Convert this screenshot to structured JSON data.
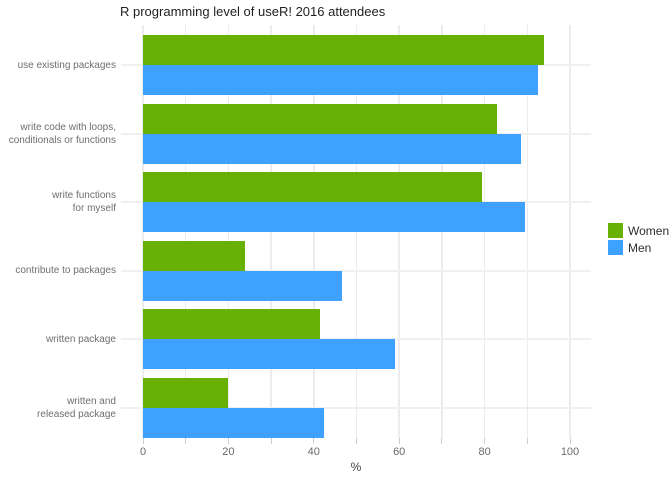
{
  "title": "R programming level of useR! 2016 attendees",
  "legend": {
    "items": [
      {
        "label": "Women",
        "color": "#69b005"
      },
      {
        "label": "Men",
        "color": "#3fa1fe"
      }
    ]
  },
  "chart_data": {
    "type": "bar",
    "orientation": "horizontal",
    "title": "R programming level of useR! 2016 attendees",
    "xlabel": "%",
    "xlim": [
      0,
      100
    ],
    "xticks_labeled": [
      0,
      20,
      40,
      60,
      80,
      100
    ],
    "xtick_step_minor": 10,
    "grid": true,
    "legend_position": "right-middle",
    "categories": [
      "use existing packages",
      "write code with loops, conditionals or functions",
      "write functions for myself",
      "contribute to packages",
      "written package",
      "written and released package"
    ],
    "category_label_lines": [
      [
        "use existing packages"
      ],
      [
        "write code with loops,",
        "conditionals or functions"
      ],
      [
        "write functions",
        "for myself"
      ],
      [
        "contribute to packages"
      ],
      [
        "written package"
      ],
      [
        "written and",
        "released package"
      ]
    ],
    "series": [
      {
        "name": "Women",
        "color": "#69b005",
        "values": [
          94,
          83,
          79.5,
          24,
          41.5,
          20
        ]
      },
      {
        "name": "Men",
        "color": "#3fa1fe",
        "values": [
          92.5,
          88.5,
          89.5,
          46.5,
          59,
          42.5
        ]
      }
    ]
  }
}
